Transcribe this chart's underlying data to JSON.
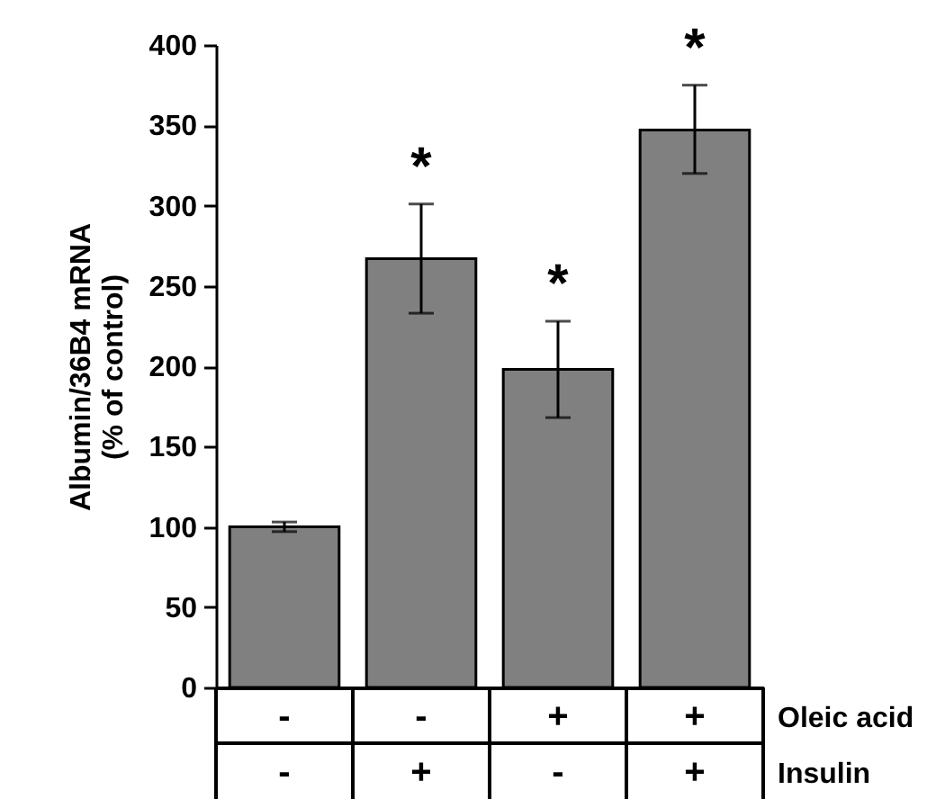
{
  "chart_data": {
    "type": "bar",
    "ylabel": "Albumin/36B4 mRNA\n(% of control)",
    "categories": [
      "-\n-",
      "-\n+",
      "+\n-",
      "+\n+"
    ],
    "values": [
      100,
      267,
      198,
      347
    ],
    "errors": [
      3,
      [
        233,
        301
      ],
      [
        168,
        228
      ],
      [
        320,
        375
      ]
    ],
    "color": "#808080",
    "ylim": [
      0,
      400
    ],
    "yticks": [
      0,
      50,
      100,
      150,
      200,
      250,
      300,
      350,
      400
    ],
    "grid": false,
    "annotations": [
      {
        "text": "*",
        "x": "-\n+",
        "y": 301
      },
      {
        "text": "*",
        "x": "+\n-",
        "y": 228
      },
      {
        "text": "*",
        "x": "+\n+",
        "y": 375
      },
      "Oleic acid",
      "Insulin"
    ]
  }
}
